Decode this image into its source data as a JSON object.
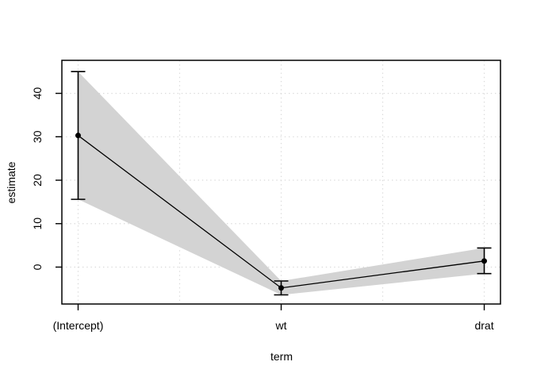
{
  "figure": {
    "background": "#ffffff",
    "description": "Base-R style coefficient plot of model estimates with confidence band"
  },
  "chart_data": {
    "type": "line",
    "title": "",
    "xlabel": "term",
    "ylabel": "estimate",
    "categories": [
      "(Intercept)",
      "wt",
      "drat"
    ],
    "x": [
      1,
      2,
      3
    ],
    "series": [
      {
        "name": "estimate",
        "values": [
          30.3,
          -4.8,
          1.4
        ]
      }
    ],
    "conf_low": [
      15.6,
      -6.4,
      -1.5
    ],
    "conf_high": [
      45.0,
      -3.2,
      4.4
    ],
    "xlim": [
      0.92,
      3.08
    ],
    "ylim": [
      -8.5,
      47.6
    ],
    "yticks": [
      0,
      10,
      20,
      30,
      40
    ],
    "grid": {
      "on": true,
      "style": "dotted",
      "x_positions": [
        1,
        1.5,
        2,
        2.5,
        3
      ],
      "y_positions": [
        0,
        10,
        20,
        30,
        40
      ],
      "color": "#dadada"
    },
    "legend": null,
    "colors": {
      "ribbon": "#d3d3d3",
      "line": "#000000",
      "marker": "#000000",
      "axis": "#000000"
    },
    "marker": {
      "shape": "circle",
      "radius": 3.5
    },
    "error_bars": {
      "cap_half_width": 9
    }
  }
}
